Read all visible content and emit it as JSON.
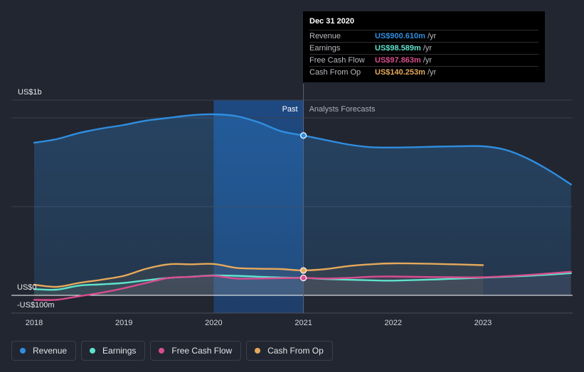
{
  "chart_data": {
    "type": "line",
    "x_tick_labels": [
      "2018",
      "2019",
      "2020",
      "2021",
      "2022",
      "2023"
    ],
    "y_tick_labels": [
      "US$1b",
      "US$0",
      "-US$100m"
    ],
    "ylim": [
      -100,
      1000
    ],
    "region_labels": {
      "past": "Past",
      "forecast": "Analysts Forecasts"
    },
    "series": [
      {
        "name": "Revenue",
        "color": "#2f8ee0",
        "points": [
          [
            2018.0,
            860
          ],
          [
            2018.25,
            880
          ],
          [
            2018.5,
            915
          ],
          [
            2018.75,
            940
          ],
          [
            2019.0,
            960
          ],
          [
            2019.25,
            985
          ],
          [
            2019.5,
            1000
          ],
          [
            2019.75,
            1015
          ],
          [
            2020.0,
            1020
          ],
          [
            2020.25,
            1010
          ],
          [
            2020.5,
            975
          ],
          [
            2020.75,
            925
          ],
          [
            2021.0,
            900.61
          ],
          [
            2021.25,
            875
          ],
          [
            2021.5,
            850
          ],
          [
            2021.75,
            835
          ],
          [
            2022.0,
            833
          ],
          [
            2022.25,
            835
          ],
          [
            2022.5,
            838
          ],
          [
            2022.75,
            840
          ],
          [
            2023.0,
            840
          ],
          [
            2023.25,
            820
          ],
          [
            2023.5,
            770
          ],
          [
            2023.75,
            700
          ],
          [
            2023.98,
            625
          ]
        ]
      },
      {
        "name": "Earnings",
        "color": "#5fe3cd",
        "points": [
          [
            2018.0,
            35
          ],
          [
            2018.25,
            32
          ],
          [
            2018.5,
            55
          ],
          [
            2018.75,
            62
          ],
          [
            2019.0,
            70
          ],
          [
            2019.25,
            85
          ],
          [
            2019.5,
            98
          ],
          [
            2019.75,
            105
          ],
          [
            2020.0,
            112
          ],
          [
            2020.25,
            110
          ],
          [
            2020.5,
            105
          ],
          [
            2020.75,
            100
          ],
          [
            2021.0,
            98.589
          ],
          [
            2021.25,
            92
          ],
          [
            2021.5,
            88
          ],
          [
            2021.75,
            85
          ],
          [
            2022.0,
            83
          ],
          [
            2022.5,
            90
          ],
          [
            2023.0,
            100
          ],
          [
            2023.5,
            110
          ],
          [
            2023.98,
            125
          ]
        ]
      },
      {
        "name": "Free Cash Flow",
        "color": "#d94d8e",
        "points": [
          [
            2018.0,
            -25
          ],
          [
            2018.25,
            -25
          ],
          [
            2018.5,
            -5
          ],
          [
            2018.75,
            15
          ],
          [
            2019.0,
            40
          ],
          [
            2019.25,
            70
          ],
          [
            2019.5,
            98
          ],
          [
            2019.75,
            104
          ],
          [
            2020.0,
            110
          ],
          [
            2020.25,
            95
          ],
          [
            2020.5,
            95
          ],
          [
            2020.75,
            97
          ],
          [
            2021.0,
            97.863
          ],
          [
            2021.25,
            95
          ],
          [
            2021.5,
            98
          ],
          [
            2021.75,
            105
          ],
          [
            2022.0,
            106
          ],
          [
            2022.5,
            103
          ],
          [
            2023.0,
            102
          ],
          [
            2023.5,
            115
          ],
          [
            2023.98,
            133
          ]
        ]
      },
      {
        "name": "Cash From Op",
        "color": "#e5a95b",
        "points": [
          [
            2018.0,
            60
          ],
          [
            2018.25,
            48
          ],
          [
            2018.5,
            70
          ],
          [
            2018.75,
            88
          ],
          [
            2019.0,
            110
          ],
          [
            2019.25,
            150
          ],
          [
            2019.5,
            175
          ],
          [
            2019.75,
            175
          ],
          [
            2020.0,
            177
          ],
          [
            2020.25,
            155
          ],
          [
            2020.5,
            150
          ],
          [
            2020.75,
            148
          ],
          [
            2021.0,
            140.253
          ],
          [
            2021.25,
            148
          ],
          [
            2021.5,
            165
          ],
          [
            2021.75,
            175
          ],
          [
            2022.0,
            180
          ],
          [
            2022.5,
            177
          ],
          [
            2023.0,
            170
          ]
        ]
      }
    ]
  },
  "tooltip": {
    "date": "Dec 31 2020",
    "rows": [
      {
        "label": "Revenue",
        "value": "US$900.610m",
        "unit": "/yr",
        "color": "#2f8ee0"
      },
      {
        "label": "Earnings",
        "value": "US$98.589m",
        "unit": "/yr",
        "color": "#5fe3cd"
      },
      {
        "label": "Free Cash Flow",
        "value": "US$97.863m",
        "unit": "/yr",
        "color": "#d94d8e"
      },
      {
        "label": "Cash From Op",
        "value": "US$140.253m",
        "unit": "/yr",
        "color": "#e5a95b"
      }
    ]
  },
  "legend": [
    {
      "label": "Revenue",
      "color": "#2f8ee0"
    },
    {
      "label": "Earnings",
      "color": "#5fe3cd"
    },
    {
      "label": "Free Cash Flow",
      "color": "#d94d8e"
    },
    {
      "label": "Cash From Op",
      "color": "#e5a95b"
    }
  ]
}
